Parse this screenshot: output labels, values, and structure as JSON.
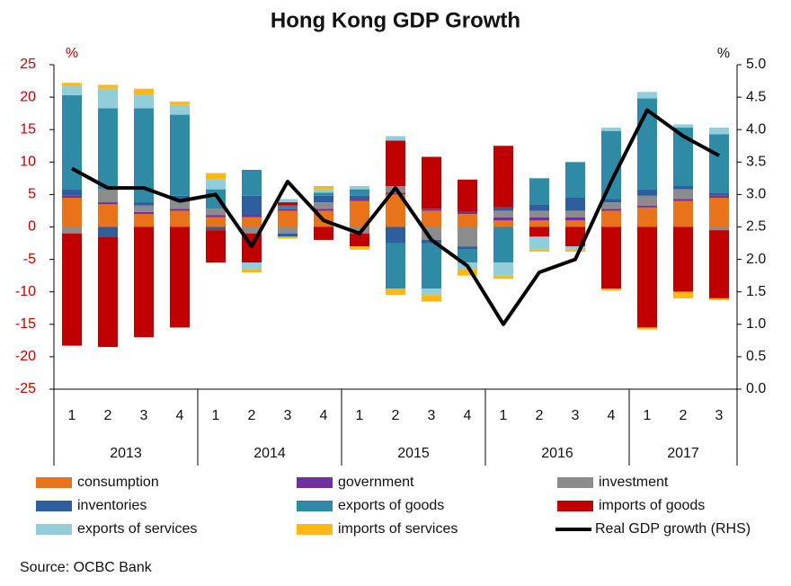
{
  "chart_data": {
    "type": "stacked-bar-line",
    "title": "Hong Kong GDP Growth",
    "y_label": "%",
    "y2_label": "%",
    "source": "Source: OCBC Bank",
    "groups": [
      {
        "label": "2013",
        "categories": [
          "1",
          "2",
          "3",
          "4"
        ]
      },
      {
        "label": "2014",
        "categories": [
          "1",
          "2",
          "3",
          "4"
        ]
      },
      {
        "label": "2015",
        "categories": [
          "1",
          "2",
          "3",
          "4"
        ]
      },
      {
        "label": "2016",
        "categories": [
          "1",
          "2",
          "3",
          "4"
        ]
      },
      {
        "label": "2017",
        "categories": [
          "1",
          "2",
          "3"
        ]
      }
    ],
    "ylim": [
      -25,
      25
    ],
    "yticks": [
      -25,
      -20,
      -15,
      -10,
      -5,
      0,
      5,
      10,
      15,
      20,
      25
    ],
    "y2lim": [
      0,
      5
    ],
    "y2ticks": [
      {
        "value": 0,
        "label": "0.0"
      },
      0.5,
      {
        "value": 1,
        "label": "1.0"
      },
      1.5,
      {
        "value": 2,
        "label": "2.0"
      },
      2.5,
      {
        "value": 3,
        "label": "3.0"
      },
      3.5,
      {
        "value": 4,
        "label": "4.0"
      },
      4.5,
      {
        "value": 5,
        "label": "5.0"
      }
    ],
    "series": [
      {
        "name": "consumption",
        "color": "#e8731a",
        "values": [
          4.5,
          3.5,
          2,
          2.5,
          1.5,
          1.5,
          2.5,
          2.5,
          4,
          5,
          2.5,
          2,
          1,
          1,
          1,
          2.5,
          3,
          4,
          4.5
        ]
      },
      {
        "name": "government",
        "color": "#7030a0",
        "values": [
          0.3,
          0.3,
          0.3,
          0.3,
          0.3,
          0.3,
          0.3,
          0.3,
          0.3,
          0.3,
          0.3,
          0.3,
          0.5,
          0.5,
          0.5,
          0.3,
          0.3,
          0.3,
          0.3
        ]
      },
      {
        "name": "investment",
        "color": "#8c8c8c",
        "values": [
          -1,
          2,
          1,
          1.5,
          1,
          -1,
          -1,
          1,
          -1,
          1,
          -2,
          -3,
          1,
          1,
          1,
          1,
          1.5,
          1.5,
          -0.5
        ]
      },
      {
        "name": "inventories",
        "color": "#2e5e9e",
        "values": [
          1,
          -1.5,
          0.5,
          0.5,
          -0.5,
          3,
          -0.5,
          1,
          0.5,
          -2.5,
          -0.5,
          -0.5,
          0.5,
          1,
          2,
          0.5,
          1,
          0.5,
          0.5
        ]
      },
      {
        "name": "exports of goods",
        "color": "#2f8aa5",
        "values": [
          14.5,
          12.5,
          14.5,
          12.5,
          3,
          4,
          0.5,
          0.5,
          1,
          -7,
          -7,
          -2,
          -5.5,
          4,
          5.5,
          10.5,
          14,
          9,
          9
        ]
      },
      {
        "name": "imports of goods",
        "color": "#c00000",
        "values": [
          -17.3,
          -17,
          -17,
          -15.5,
          -5,
          -4.5,
          0.5,
          -2,
          -2,
          7,
          8,
          5,
          9.5,
          -1.5,
          -3,
          -9.5,
          -15.5,
          -10,
          -10.5
        ]
      },
      {
        "name": "exports of services",
        "color": "#92cddc",
        "values": [
          1.5,
          3,
          2,
          1.5,
          1.5,
          -1,
          0.5,
          0.5,
          0.5,
          0.7,
          -1,
          -1,
          -2,
          -2,
          -0.5,
          0.5,
          1,
          0.5,
          1
        ]
      },
      {
        "name": "imports of services",
        "color": "#fdb813",
        "values": [
          0.4,
          0.6,
          1,
          0.5,
          1,
          -0.5,
          -0.3,
          0.5,
          -0.5,
          -1,
          -1,
          -1,
          -0.5,
          -0.3,
          -0.3,
          -0.3,
          -0.3,
          -1,
          -0.3
        ]
      },
      {
        "name": "Real GDP growth (RHS)",
        "color": "#000000",
        "axis": "y2",
        "type": "line",
        "values": [
          3.4,
          3.1,
          3.1,
          2.9,
          3.0,
          2.2,
          3.2,
          2.6,
          2.4,
          3.1,
          2.3,
          1.9,
          1.0,
          1.8,
          2.0,
          3.2,
          4.3,
          3.9,
          3.6
        ]
      }
    ]
  }
}
